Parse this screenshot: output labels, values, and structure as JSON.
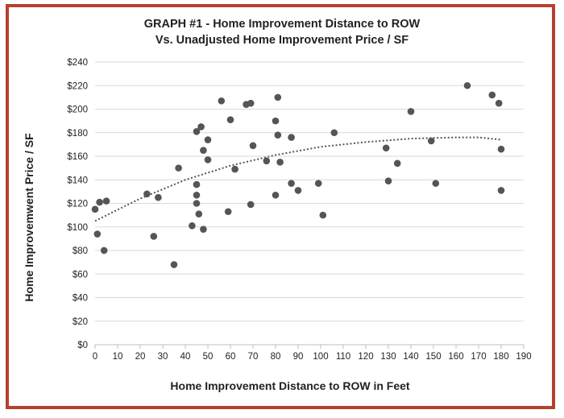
{
  "chart_data": {
    "type": "scatter",
    "title_line1": "GRAPH #1 -  Home Improvement Distance to ROW",
    "title_line2": "Vs. Unadjusted Home Improvement Price / SF",
    "xlabel": "Home Improvement Distance to ROW in Feet",
    "ylabel": "Home Improvemwent Price / SF",
    "xlim": [
      0,
      190
    ],
    "ylim": [
      0,
      240
    ],
    "x_ticks": [
      "0",
      "10",
      "20",
      "30",
      "40",
      "50",
      "60",
      "70",
      "80",
      "90",
      "100",
      "110",
      "120",
      "130",
      "140",
      "150",
      "160",
      "170",
      "180",
      "190"
    ],
    "y_ticks": [
      "$0",
      "$20",
      "$40",
      "$60",
      "$80",
      "$100",
      "$120",
      "$140",
      "$160",
      "$180",
      "$200",
      "$220",
      "$240"
    ],
    "grid": "horizontal",
    "legend": "none",
    "trendline": "polynomial (dotted)",
    "colors": {
      "points": "#555555",
      "grid": "#d9d9d9",
      "frame": "#b5412e"
    },
    "points": [
      {
        "x": 0,
        "y": 115
      },
      {
        "x": 1,
        "y": 94
      },
      {
        "x": 2,
        "y": 121
      },
      {
        "x": 4,
        "y": 80
      },
      {
        "x": 5,
        "y": 122
      },
      {
        "x": 23,
        "y": 128
      },
      {
        "x": 26,
        "y": 92
      },
      {
        "x": 28,
        "y": 125
      },
      {
        "x": 35,
        "y": 68
      },
      {
        "x": 37,
        "y": 150
      },
      {
        "x": 43,
        "y": 101
      },
      {
        "x": 45,
        "y": 181
      },
      {
        "x": 45,
        "y": 136
      },
      {
        "x": 45,
        "y": 127
      },
      {
        "x": 45,
        "y": 120
      },
      {
        "x": 46,
        "y": 111
      },
      {
        "x": 47,
        "y": 185
      },
      {
        "x": 48,
        "y": 165
      },
      {
        "x": 48,
        "y": 98
      },
      {
        "x": 50,
        "y": 174
      },
      {
        "x": 50,
        "y": 157
      },
      {
        "x": 56,
        "y": 207
      },
      {
        "x": 59,
        "y": 113
      },
      {
        "x": 60,
        "y": 191
      },
      {
        "x": 62,
        "y": 149
      },
      {
        "x": 67,
        "y": 204
      },
      {
        "x": 69,
        "y": 205
      },
      {
        "x": 69,
        "y": 119
      },
      {
        "x": 70,
        "y": 169
      },
      {
        "x": 76,
        "y": 156
      },
      {
        "x": 80,
        "y": 190
      },
      {
        "x": 80,
        "y": 127
      },
      {
        "x": 81,
        "y": 210
      },
      {
        "x": 81,
        "y": 178
      },
      {
        "x": 82,
        "y": 155
      },
      {
        "x": 87,
        "y": 176
      },
      {
        "x": 87,
        "y": 137
      },
      {
        "x": 90,
        "y": 131
      },
      {
        "x": 99,
        "y": 137
      },
      {
        "x": 101,
        "y": 110
      },
      {
        "x": 106,
        "y": 180
      },
      {
        "x": 129,
        "y": 167
      },
      {
        "x": 130,
        "y": 139
      },
      {
        "x": 134,
        "y": 154
      },
      {
        "x": 140,
        "y": 198
      },
      {
        "x": 149,
        "y": 173
      },
      {
        "x": 151,
        "y": 137
      },
      {
        "x": 165,
        "y": 220
      },
      {
        "x": 176,
        "y": 212
      },
      {
        "x": 179,
        "y": 205
      },
      {
        "x": 180,
        "y": 166
      },
      {
        "x": 180,
        "y": 131
      }
    ],
    "trend_points": [
      {
        "x": 0,
        "y": 105
      },
      {
        "x": 20,
        "y": 124
      },
      {
        "x": 40,
        "y": 140
      },
      {
        "x": 60,
        "y": 152
      },
      {
        "x": 80,
        "y": 161
      },
      {
        "x": 100,
        "y": 168
      },
      {
        "x": 120,
        "y": 172
      },
      {
        "x": 140,
        "y": 175
      },
      {
        "x": 160,
        "y": 176
      },
      {
        "x": 170,
        "y": 176
      },
      {
        "x": 180,
        "y": 174
      }
    ]
  }
}
